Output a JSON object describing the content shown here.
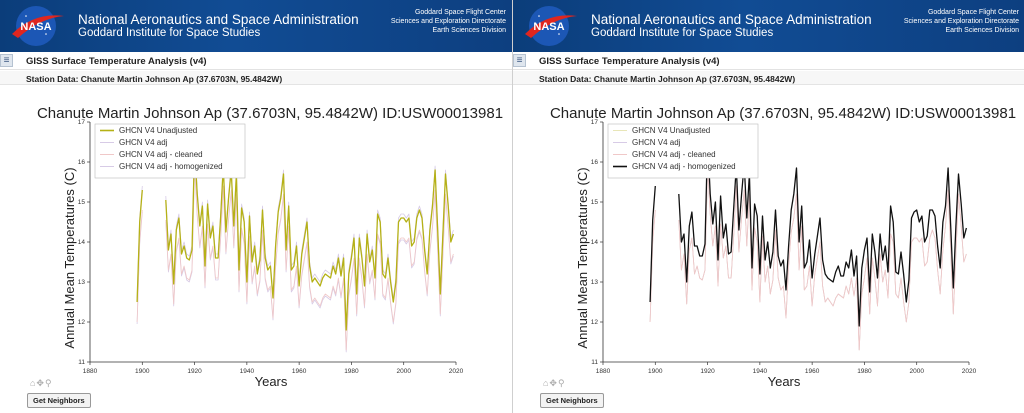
{
  "header": {
    "logo_text": "NASA",
    "agency": "National Aeronautics and Space Administration",
    "institute": "Goddard Institute for Space Studies",
    "center_lines": [
      "Goddard Space Flight Center",
      "Sciences and Exploration Directorate",
      "Earth Sciences Division"
    ]
  },
  "app": {
    "menu_icon": "hamburger-menu-icon",
    "title": "GISS Surface Temperature Analysis (v4)",
    "station_label": "Station Data: Chanute Martin Johnson Ap (37.6703N, 95.4842W)"
  },
  "toolbar": {
    "icons": "home-pan-zoom-icons",
    "neighbors_label": "Get Neighbors"
  },
  "colors": {
    "header_bg": "#0f4a8f",
    "unadjusted": "#b5b116",
    "adj": "#d7cbe6",
    "cleaned": "#f0c8c8",
    "homogenized": "#111111",
    "faded_unadjusted": "#e8e6b8"
  },
  "chart_data": [
    {
      "type": "line",
      "title": "Chanute Martin Johnson Ap (37.6703N, 95.4842W) ID:USW00013981",
      "xlabel": "Years",
      "ylabel": "Annual Mean Temperatures (C)",
      "xlim": [
        1880,
        2020
      ],
      "ylim": [
        11,
        17
      ],
      "x_ticks": [
        "1880",
        "1900",
        "1920",
        "1940",
        "1960",
        "1980",
        "2000",
        "2020"
      ],
      "y_ticks": [
        "11",
        "12",
        "13",
        "14",
        "15",
        "16",
        "17"
      ],
      "legend": "top-left",
      "highlighted_series": "GHCN V4 Unadjusted",
      "series": [
        {
          "name": "GHCN V4 Unadjusted",
          "color": "#b5b116",
          "x": [
            1898,
            1899,
            1900,
            1909,
            1910,
            1911,
            1912,
            1913,
            1914,
            1915,
            1916,
            1917,
            1918,
            1919,
            1920,
            1921,
            1922,
            1923,
            1924,
            1925,
            1926,
            1927,
            1928,
            1929,
            1930,
            1931,
            1932,
            1933,
            1934,
            1935,
            1936,
            1937,
            1938,
            1939,
            1940,
            1941,
            1942,
            1943,
            1944,
            1945,
            1946,
            1947,
            1948,
            1949,
            1950,
            1951,
            1952,
            1953,
            1954,
            1955,
            1956,
            1957,
            1958,
            1959,
            1960,
            1961,
            1962,
            1963,
            1964,
            1965,
            1966,
            1967,
            1968,
            1969,
            1970,
            1971,
            1972,
            1973,
            1974,
            1975,
            1976,
            1977,
            1978,
            1979,
            1980,
            1981,
            1982,
            1983,
            1984,
            1985,
            1986,
            1987,
            1988,
            1989,
            1990,
            1991,
            1992,
            1993,
            1994,
            1995,
            1996,
            1997,
            1998,
            1999,
            2000,
            2001,
            2002,
            2003,
            2004,
            2005,
            2006,
            2007,
            2008,
            2009,
            2010,
            2011,
            2012,
            2013,
            2014,
            2015,
            2016,
            2017,
            2018,
            2019
          ],
          "y": [
            12.5,
            14.5,
            15.3,
            15.05,
            13.8,
            14.2,
            12.95,
            14.3,
            14.6,
            13.7,
            13.9,
            13.6,
            13.55,
            13.8,
            16.4,
            15.2,
            14.4,
            14.9,
            13.4,
            14.95,
            14.1,
            14.4,
            13.6,
            13.6,
            14.65,
            15.9,
            14.25,
            15.1,
            15.8,
            14.4,
            15.7,
            13.3,
            14.85,
            14.5,
            13.0,
            14.65,
            13.5,
            13.9,
            13.2,
            13.55,
            14.8,
            13.6,
            13.3,
            13.4,
            12.6,
            13.9,
            14.75,
            15.1,
            15.7,
            13.8,
            14.9,
            13.3,
            13.4,
            13.9,
            12.9,
            13.7,
            14.1,
            14.5,
            13.4,
            13.0,
            13.1,
            13.0,
            12.9,
            13.1,
            13.2,
            13.15,
            13.1,
            13.4,
            13.2,
            13.6,
            13.15,
            13.6,
            11.8,
            13.2,
            13.6,
            14.1,
            12.7,
            14.1,
            13.6,
            12.9,
            14.2,
            13.5,
            13.8,
            13.1,
            14.7,
            14.5,
            13.2,
            13.1,
            13.6,
            13.0,
            12.5,
            13.0,
            14.5,
            14.6,
            14.6,
            14.5,
            14.6,
            13.9,
            14.0,
            14.6,
            14.8,
            14.6,
            13.8,
            13.2,
            14.3,
            14.9,
            15.8,
            14.3,
            12.7,
            14.2,
            15.7,
            14.9,
            14.0,
            14.2
          ]
        },
        {
          "name": "GHCN V4 adj",
          "color": "#d7cbe6",
          "offset": -0.55
        },
        {
          "name": "GHCN V4 adj - cleaned",
          "color": "#f0c8c8",
          "offset": -0.5
        },
        {
          "name": "GHCN V4 adj - homogenized",
          "color": "#d7cbe6",
          "offset": 0.1
        }
      ]
    },
    {
      "type": "line",
      "title": "Chanute Martin Johnson Ap (37.6703N, 95.4842W) ID:USW00013981",
      "xlabel": "Years",
      "ylabel": "Annual Mean Temperatures (C)",
      "xlim": [
        1880,
        2020
      ],
      "ylim": [
        11,
        17
      ],
      "x_ticks": [
        "1880",
        "1900",
        "1920",
        "1940",
        "1960",
        "1980",
        "2000",
        "2020"
      ],
      "y_ticks": [
        "11",
        "12",
        "13",
        "14",
        "15",
        "16",
        "17"
      ],
      "legend": "top-left",
      "highlighted_series": "GHCN V4 adj - homogenized",
      "series": [
        {
          "name": "GHCN V4 Unadjusted",
          "color": "#e8e6b8"
        },
        {
          "name": "GHCN V4 adj",
          "color": "#d7cbe6"
        },
        {
          "name": "GHCN V4 adj - cleaned",
          "color": "#f0c8c8"
        },
        {
          "name": "GHCN V4 adj - homogenized",
          "color": "#111111"
        }
      ]
    }
  ]
}
